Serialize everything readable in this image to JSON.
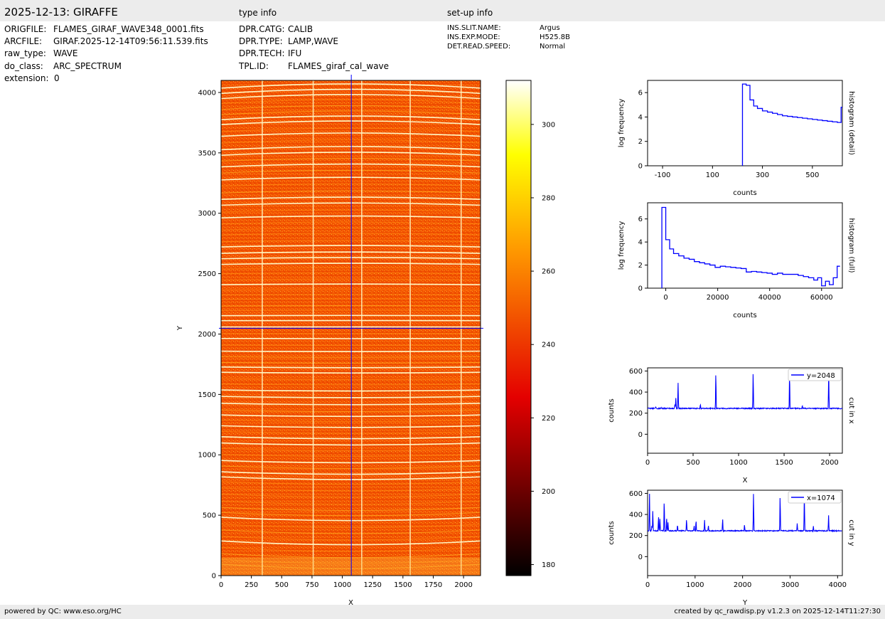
{
  "header": {
    "title": "2025-12-13: GIRAFFE",
    "col2_title": "type info",
    "col3_title": "set-up info"
  },
  "file_info": [
    {
      "key": "ORIGFILE:",
      "val": "FLAMES_GIRAF_WAVE348_0001.fits"
    },
    {
      "key": "ARCFILE:",
      "val": "GIRAF.2025-12-14T09:56:11.539.fits"
    },
    {
      "key": "raw_type:",
      "val": "WAVE"
    },
    {
      "key": "do_class:",
      "val": "ARC_SPECTRUM"
    },
    {
      "key": "extension:",
      "val": "0"
    }
  ],
  "type_info": [
    {
      "key": "DPR.CATG:",
      "val": "CALIB"
    },
    {
      "key": "DPR.TYPE:",
      "val": "LAMP,WAVE"
    },
    {
      "key": "DPR.TECH:",
      "val": "IFU"
    },
    {
      "key": "TPL.ID:",
      "val": "FLAMES_giraf_cal_wave"
    }
  ],
  "setup_info": [
    {
      "key": "INS.SLIT.NAME:",
      "val": "Argus"
    },
    {
      "key": "INS.EXP.MODE:",
      "val": "H525.8B"
    },
    {
      "key": "DET.READ.SPEED:",
      "val": "Normal"
    }
  ],
  "footer": {
    "left": "powered by QC: www.eso.org/HC",
    "right": "created by qc_rawdisp.py v1.2.3 on 2025-12-14T11:27:30"
  },
  "colors": {
    "series": "#0000ff",
    "crosshair": "#0000ff",
    "band": "#ececec",
    "colormap": "hot"
  },
  "chart_data": [
    {
      "type": "heatmap",
      "name": "image",
      "xlabel": "X",
      "ylabel": "Y",
      "xlim": [
        0,
        2140
      ],
      "ylim": [
        0,
        4100
      ],
      "xticks": [
        0,
        250,
        500,
        750,
        1000,
        1250,
        1500,
        1750,
        2000
      ],
      "yticks": [
        0,
        500,
        1000,
        1500,
        2000,
        2500,
        3000,
        3500,
        4000
      ],
      "crosshair": {
        "x": 1074,
        "y": 2048
      },
      "colorbar": {
        "min": 177,
        "max": 312,
        "ticks": [
          180,
          200,
          220,
          240,
          260,
          280,
          300
        ]
      }
    },
    {
      "type": "line",
      "name": "histogram (detail)",
      "side_label": "histogram (detail)",
      "xlabel": "counts",
      "ylabel": "log frequency",
      "xlim": [
        -160,
        620
      ],
      "ylim": [
        0,
        7
      ],
      "xticks": [
        -100,
        100,
        300,
        500
      ],
      "yticks": [
        0,
        2,
        4,
        6
      ],
      "x": [
        220,
        235,
        250,
        265,
        280,
        300,
        320,
        340,
        360,
        380,
        400,
        420,
        440,
        460,
        480,
        500,
        520,
        540,
        560,
        580,
        600,
        615,
        620
      ],
      "y": [
        6.7,
        6.6,
        5.4,
        4.9,
        4.7,
        4.5,
        4.4,
        4.3,
        4.2,
        4.1,
        4.05,
        4.0,
        3.95,
        3.9,
        3.85,
        3.8,
        3.75,
        3.7,
        3.65,
        3.6,
        3.55,
        4.8,
        4.8
      ]
    },
    {
      "type": "line",
      "name": "histogram (full)",
      "side_label": "histogram (full)",
      "xlabel": "counts",
      "ylabel": "log frequency",
      "xlim": [
        -7000,
        68000
      ],
      "ylim": [
        0,
        7.4
      ],
      "xticks": [
        0,
        20000,
        40000,
        60000
      ],
      "yticks": [
        0,
        2,
        4,
        6
      ],
      "x": [
        -1500,
        0,
        1500,
        3000,
        5000,
        7000,
        9000,
        11000,
        13000,
        15000,
        17000,
        19000,
        21000,
        23000,
        25000,
        27000,
        29000,
        31000,
        33000,
        35000,
        37000,
        39000,
        41000,
        43000,
        45000,
        47000,
        49000,
        51000,
        53000,
        55000,
        57000,
        58500,
        60000,
        61500,
        63000,
        64500,
        66000
      ],
      "y": [
        7.0,
        4.2,
        3.4,
        3.0,
        2.8,
        2.6,
        2.5,
        2.3,
        2.2,
        2.1,
        2.0,
        1.8,
        1.9,
        1.85,
        1.8,
        1.75,
        1.7,
        1.4,
        1.45,
        1.4,
        1.35,
        1.3,
        1.2,
        1.3,
        1.2,
        1.2,
        1.2,
        1.1,
        1.0,
        0.9,
        0.7,
        0.9,
        0.2,
        0.6,
        0.3,
        0.9,
        1.9
      ]
    },
    {
      "type": "line",
      "name": "cut in x",
      "side_label": "cut in x",
      "legend": "y=2048",
      "xlabel": "X",
      "ylabel": "counts",
      "xlim": [
        0,
        2140
      ],
      "ylim": [
        -180,
        630
      ],
      "xticks": [
        0,
        500,
        1000,
        1500,
        2000
      ],
      "yticks": [
        0,
        200,
        400,
        600
      ],
      "baseline": 245,
      "peaks": [
        [
          90,
          260
        ],
        [
          150,
          255
        ],
        [
          300,
          285
        ],
        [
          310,
          350
        ],
        [
          335,
          500
        ],
        [
          580,
          290
        ],
        [
          750,
          630
        ],
        [
          1160,
          630
        ],
        [
          1560,
          630
        ],
        [
          1700,
          275
        ],
        [
          1990,
          630
        ]
      ],
      "x_range": [
        0,
        2140
      ]
    },
    {
      "type": "line",
      "name": "cut in y",
      "side_label": "cut in y",
      "legend": "x=1074",
      "xlabel": "Y",
      "ylabel": "counts",
      "xlim": [
        0,
        4100
      ],
      "ylim": [
        -180,
        630
      ],
      "xticks": [
        0,
        1000,
        2000,
        3000,
        4000
      ],
      "yticks": [
        0,
        200,
        400,
        600
      ],
      "baseline": 245,
      "peaks": [
        [
          40,
          630
        ],
        [
          90,
          300
        ],
        [
          110,
          450
        ],
        [
          230,
          400
        ],
        [
          260,
          370
        ],
        [
          350,
          580
        ],
        [
          400,
          390
        ],
        [
          430,
          330
        ],
        [
          630,
          310
        ],
        [
          820,
          370
        ],
        [
          980,
          300
        ],
        [
          1020,
          360
        ],
        [
          1200,
          350
        ],
        [
          1280,
          300
        ],
        [
          1580,
          370
        ],
        [
          2040,
          310
        ],
        [
          2230,
          630
        ],
        [
          2790,
          630
        ],
        [
          3150,
          320
        ],
        [
          3300,
          630
        ],
        [
          3490,
          290
        ],
        [
          3810,
          400
        ]
      ],
      "x_range": [
        0,
        4090
      ]
    }
  ]
}
